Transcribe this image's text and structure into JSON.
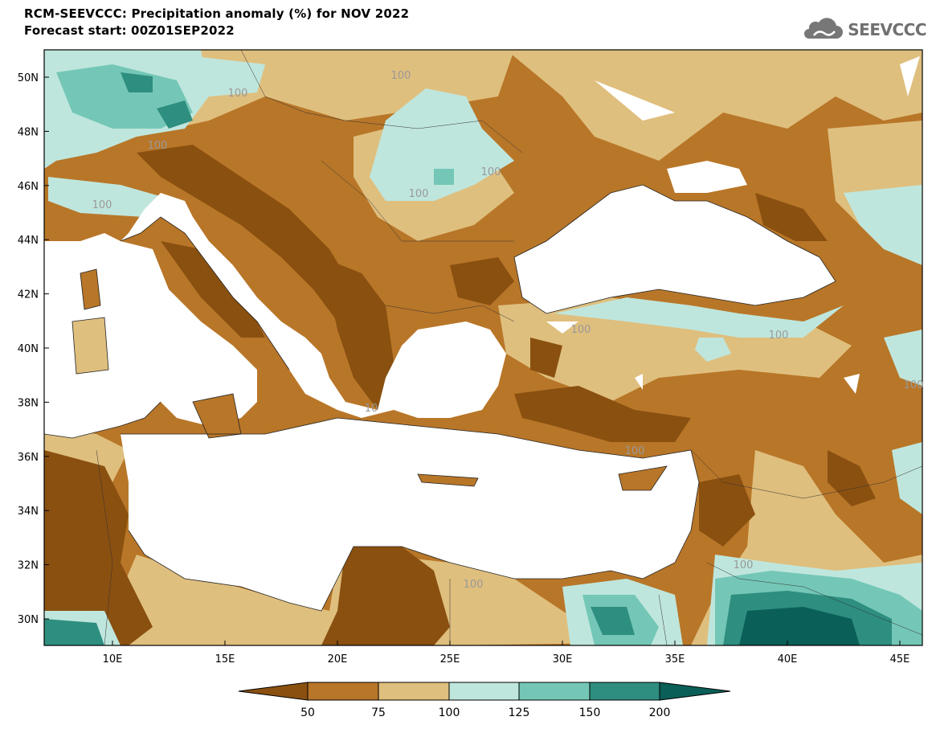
{
  "header": {
    "title_line_1": "RCM-SEEVCCC: Precipitation anomaly (%) for NOV 2022",
    "title_line_2": "Forecast start: 00Z01SEP2022"
  },
  "logo": {
    "text": "SEEVCCC",
    "icon": "cloud-icon"
  },
  "map": {
    "lat_labels": [
      "50N",
      "48N",
      "46N",
      "44N",
      "42N",
      "40N",
      "38N",
      "36N",
      "34N",
      "32N",
      "30N"
    ],
    "lon_labels": [
      "10E",
      "15E",
      "20E",
      "25E",
      "30E",
      "35E",
      "40E",
      "45E"
    ],
    "contour_labels": [
      "100",
      "100",
      "100",
      "100",
      "100",
      "100",
      "100",
      "100",
      "100",
      "100",
      "100",
      "100",
      "10"
    ]
  },
  "colorbar": {
    "labels": [
      "50",
      "75",
      "100",
      "125",
      "150",
      "200"
    ],
    "colors": [
      "#8a5010",
      "#b87628",
      "#dfbf7e",
      "#bfe6dd",
      "#74c7b6",
      "#2e8e80",
      "#0a5f58"
    ]
  },
  "palette": {
    "sea": "#ffffff",
    "very_dry": "#8a5010",
    "dry": "#b87628",
    "slightly_dry": "#dfbf7e",
    "slightly_wet": "#bfe6dd",
    "wet": "#74c7b6",
    "very_wet": "#2e8e80",
    "extreme_wet": "#0a5f58"
  }
}
